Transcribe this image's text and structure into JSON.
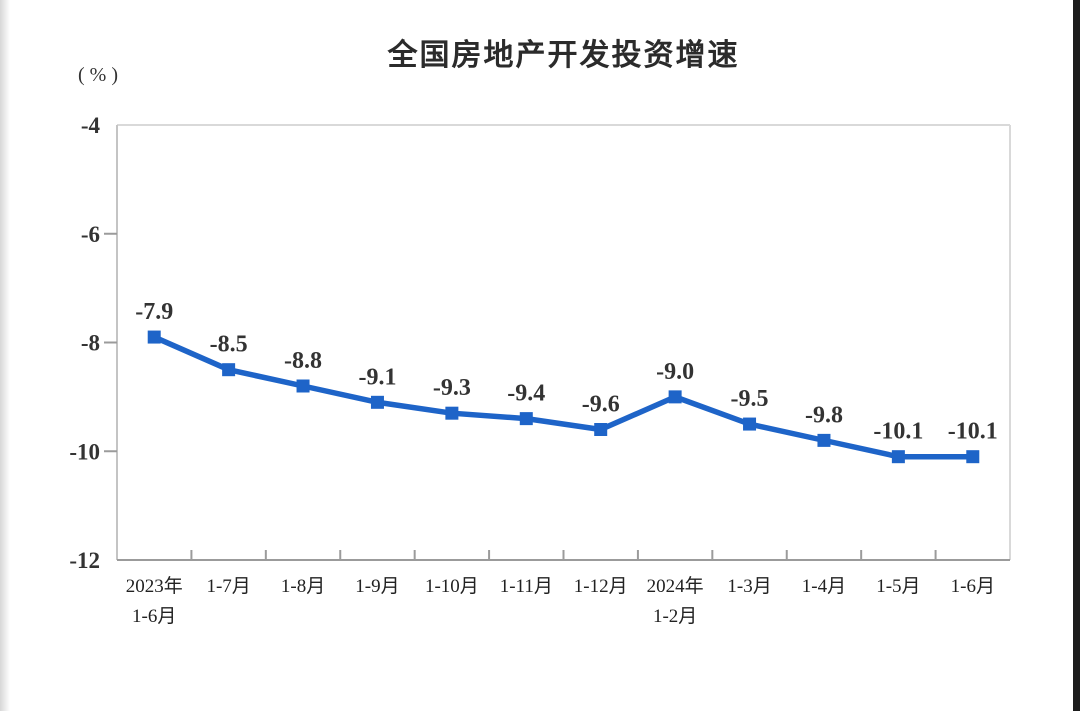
{
  "chart_data": {
    "type": "line",
    "title": "全国房地产开发投资增速",
    "unit_label": "(%)",
    "categories": [
      [
        "2023年",
        "1-6月"
      ],
      [
        "1-7月"
      ],
      [
        "1-8月"
      ],
      [
        "1-9月"
      ],
      [
        "1-10月"
      ],
      [
        "1-11月"
      ],
      [
        "1-12月"
      ],
      [
        "2024年",
        "1-2月"
      ],
      [
        "1-3月"
      ],
      [
        "1-4月"
      ],
      [
        "1-5月"
      ],
      [
        "1-6月"
      ]
    ],
    "values": [
      -7.9,
      -8.5,
      -8.8,
      -9.1,
      -9.3,
      -9.4,
      -9.6,
      -9.0,
      -9.5,
      -9.8,
      -10.1,
      -10.1
    ],
    "y_ticks": [
      -4,
      -6,
      -8,
      -10,
      -12
    ],
    "ylim": [
      -12,
      -4
    ],
    "xlabel": "",
    "ylabel": "(%)",
    "grid": "off",
    "legend": "none",
    "line_color": "#1e64c8",
    "marker": "square",
    "label_decimals": 1
  }
}
